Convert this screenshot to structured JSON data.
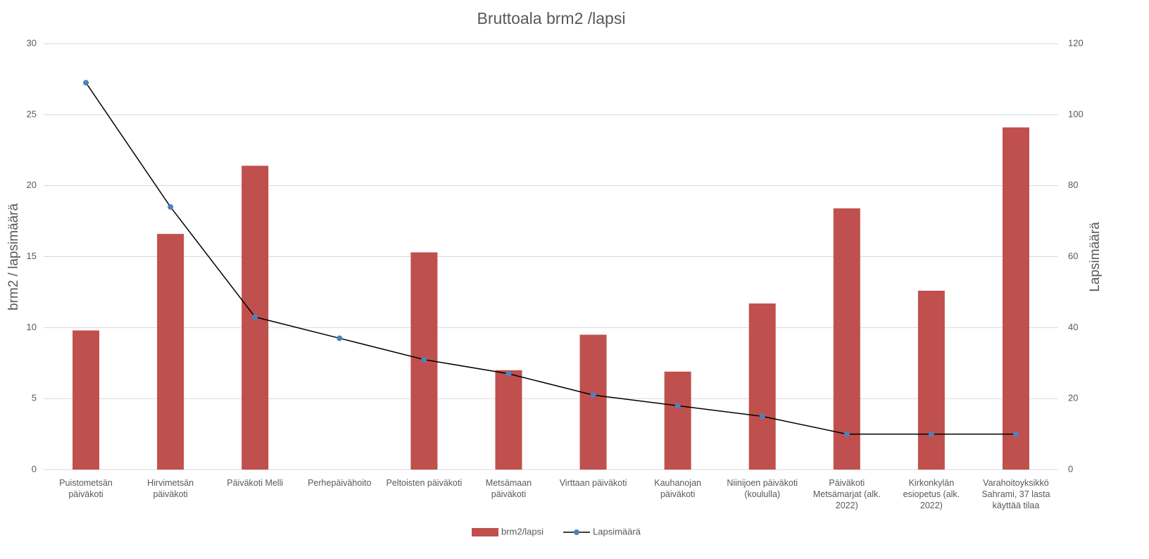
{
  "chart_data": {
    "type": "bar_line",
    "title": "Bruttoala brm2 /lapsi",
    "y_label": "brm2 / lapsimäärä",
    "y2_label": "Lapsimäärä",
    "categories": [
      "Puistometsän päiväkoti",
      "Hirvimetsän päiväkoti",
      "Päiväkoti Melli",
      "Perhepäivähoito",
      "Peltoisten päiväkoti",
      "Metsämaan päiväkoti",
      "Virttaan päiväkoti",
      "Kauhanojan päiväkoti",
      "Niinijoen päiväkoti (koululla)",
      "Päiväkoti Metsämarjat (alk. 2022)",
      "Kirkonkylän esiopetus (alk. 2022)",
      "Varahoitoyksikkö Sahrami, 37 lasta käyttää tilaa"
    ],
    "series": [
      {
        "name": "brm2/lapsi",
        "type": "bar",
        "color": "#c0504d",
        "values": [
          9.8,
          16.6,
          21.4,
          null,
          15.3,
          7.0,
          9.5,
          6.9,
          11.7,
          18.4,
          12.6,
          24.1
        ]
      },
      {
        "name": "Lapsimäärä",
        "type": "line",
        "axis": "y2",
        "color": "#4f81bd",
        "line_color": "#000000",
        "values": [
          109,
          74,
          43,
          37,
          31,
          27,
          21,
          18,
          15,
          10,
          10,
          10
        ]
      }
    ],
    "ylim": [
      0,
      30
    ],
    "yticks": [
      0,
      5,
      10,
      15,
      20,
      25,
      30
    ],
    "y2lim": [
      0,
      120
    ],
    "y2ticks": [
      0,
      20,
      40,
      60,
      80,
      100,
      120
    ],
    "grid": true,
    "legend": "bottom"
  }
}
